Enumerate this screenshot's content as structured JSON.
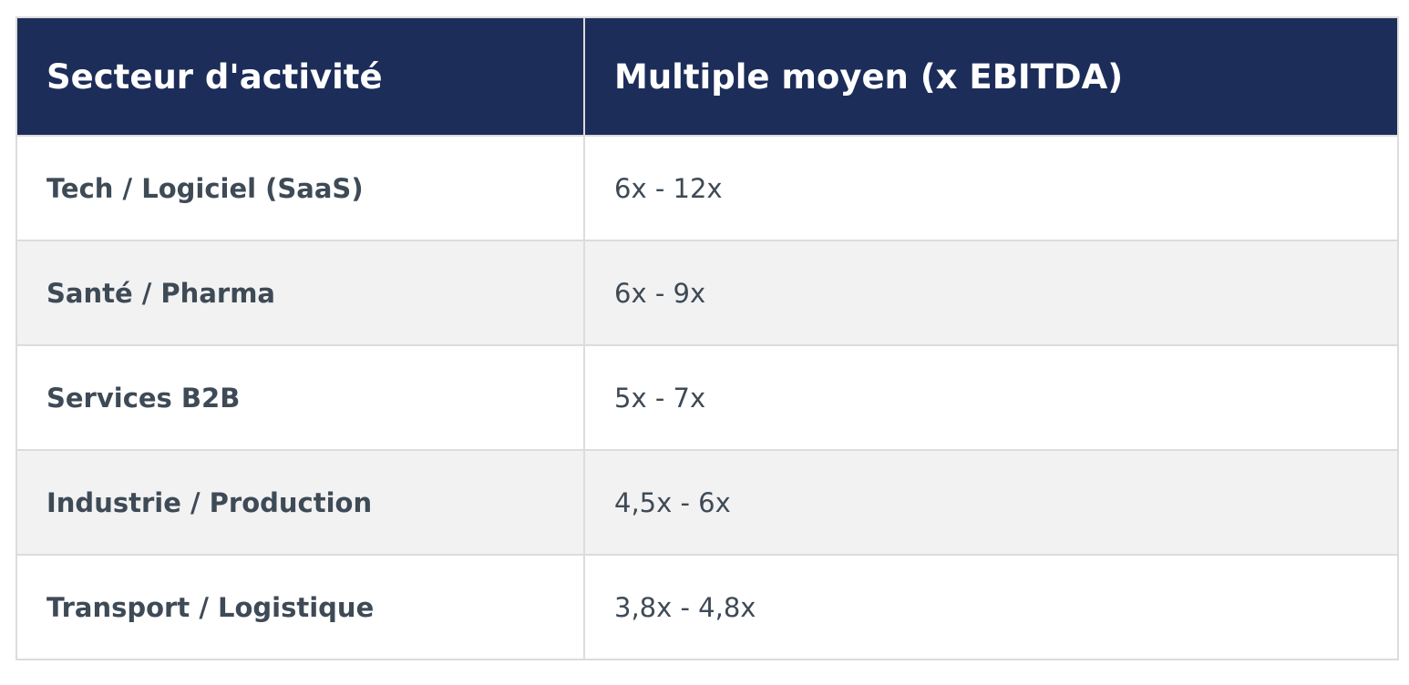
{
  "table": {
    "header": [
      "Secteur d'activité",
      "Multiple moyen (x EBITDA)"
    ],
    "rows": [
      [
        "Tech / Logiciel (SaaS)",
        "6x - 12x"
      ],
      [
        "Santé / Pharma",
        "6x - 9x"
      ],
      [
        "Services B2B",
        "5x - 7x"
      ],
      [
        "Industrie / Production",
        "4,5x - 6x"
      ],
      [
        "Transport / Logistique",
        "3,8x - 4,8x"
      ]
    ]
  }
}
